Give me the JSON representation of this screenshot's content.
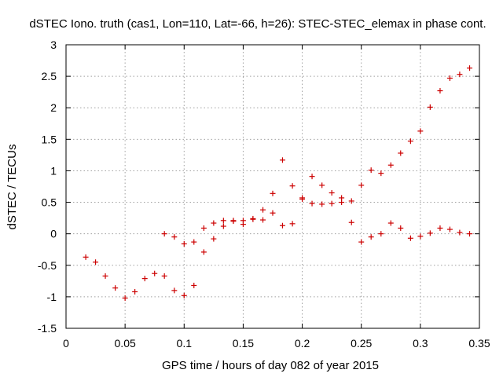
{
  "chart_data": {
    "type": "scatter",
    "title": "dSTEC Iono. truth (cas1, Lon=110, Lat=-66, h=26): STEC-STEC_elemax in phase cont.",
    "xlabel": "GPS time / hours of day 082 of year 2015",
    "ylabel": "dSTEC  / TECUs",
    "xlim": [
      0,
      0.35
    ],
    "ylim": [
      -1.5,
      3
    ],
    "xticks": [
      "0",
      "0.05",
      "0.1",
      "0.15",
      "0.2",
      "0.25",
      "0.3",
      "0.35"
    ],
    "yticks": [
      "-1.5",
      "-1",
      "-0.5",
      "0",
      "0.5",
      "1",
      "1.5",
      "2",
      "2.5",
      "3"
    ],
    "grid": true,
    "marker": "plus",
    "color": "#cc0000",
    "series": [
      {
        "x": [
          0.0167,
          0.025,
          0.0333,
          0.0417,
          0.05,
          0.0583,
          0.0667,
          0.075,
          0.0833,
          0.0833,
          0.0917,
          0.0917,
          0.1,
          0.1,
          0.1083,
          0.1083,
          0.1167,
          0.1167,
          0.125,
          0.125,
          0.1333,
          0.1333,
          0.1417,
          0.1417,
          0.15,
          0.15,
          0.1583,
          0.1583,
          0.1667,
          0.1667,
          0.175,
          0.175,
          0.1833,
          0.1833,
          0.1917,
          0.1917,
          0.2,
          0.2,
          0.2083,
          0.2083,
          0.2167,
          0.2167,
          0.225,
          0.225,
          0.2333,
          0.2333,
          0.2417,
          0.2417,
          0.25,
          0.25,
          0.2583,
          0.2583,
          0.2667,
          0.2667,
          0.275,
          0.275,
          0.2833,
          0.2833,
          0.2917,
          0.2917,
          0.3,
          0.3,
          0.3083,
          0.3083,
          0.3167,
          0.3167,
          0.325,
          0.325,
          0.3333,
          0.3333,
          0.3417,
          0.3417
        ],
        "y": [
          -0.37,
          -0.45,
          -0.67,
          -0.86,
          -1.02,
          -0.92,
          -0.71,
          -0.63,
          -0.67,
          0.0,
          -0.9,
          -0.05,
          -0.98,
          -0.16,
          -0.82,
          -0.13,
          -0.29,
          0.09,
          -0.08,
          0.17,
          0.12,
          0.21,
          0.2,
          0.21,
          0.15,
          0.21,
          0.23,
          0.24,
          0.22,
          0.38,
          0.33,
          0.64,
          0.13,
          1.17,
          0.16,
          0.76,
          0.55,
          0.57,
          0.48,
          0.91,
          0.47,
          0.77,
          0.48,
          0.65,
          0.5,
          0.57,
          0.52,
          0.18,
          -0.13,
          0.77,
          -0.05,
          1.01,
          0.0,
          0.96,
          0.17,
          1.09,
          0.09,
          1.28,
          -0.07,
          1.47,
          -0.04,
          1.63,
          0.01,
          2.01,
          0.09,
          2.27,
          0.07,
          2.47,
          0.02,
          2.53,
          0.0,
          2.63
        ]
      }
    ]
  }
}
